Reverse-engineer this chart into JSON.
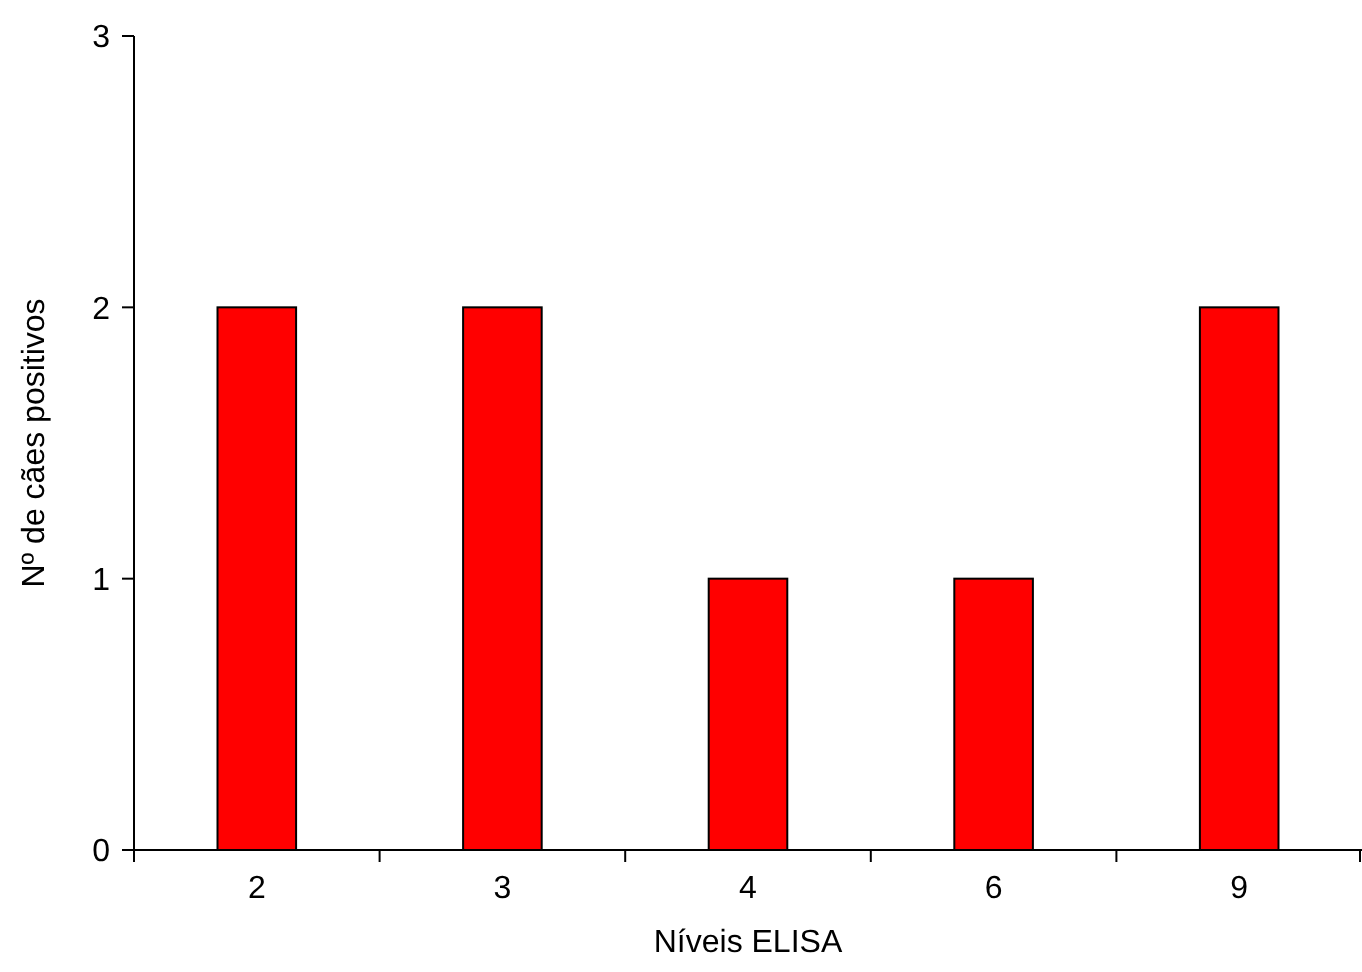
{
  "chart_data": {
    "type": "bar",
    "xlabel": "Níveis ELISA",
    "ylabel": "Nº de cães positivos",
    "categories": [
      "2",
      "3",
      "4",
      "6",
      "9"
    ],
    "values": [
      2,
      2,
      1,
      1,
      2
    ],
    "color": "#ff0000",
    "ylim": [
      0,
      3
    ],
    "yticks": [
      0,
      1,
      2,
      3
    ]
  }
}
